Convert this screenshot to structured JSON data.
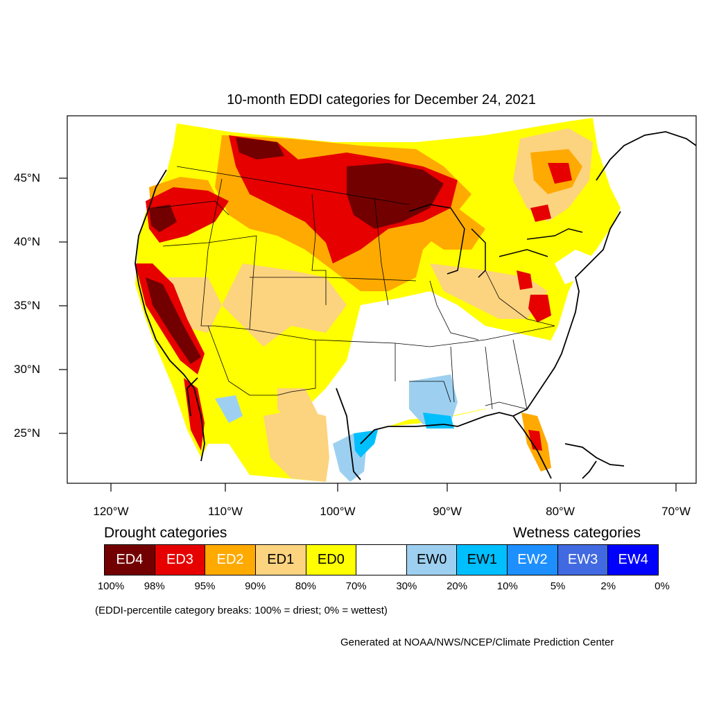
{
  "title": "10-month EDDI categories for December 24, 2021",
  "lat_labels": [
    "45°N",
    "40°N",
    "35°N",
    "30°N",
    "25°N"
  ],
  "lon_labels": [
    "120°W",
    "110°W",
    "100°W",
    "90°W",
    "80°W",
    "70°W"
  ],
  "legend": {
    "drought_heading": "Drought categories",
    "wetness_heading": "Wetness categories",
    "categories": [
      {
        "label": "ED4",
        "color": "#730000",
        "text_color": "#ffffff"
      },
      {
        "label": "ED3",
        "color": "#e60000",
        "text_color": "#ffffff"
      },
      {
        "label": "ED2",
        "color": "#ffaa00",
        "text_color": "#ffffff"
      },
      {
        "label": "ED1",
        "color": "#fcd37f",
        "text_color": "#000000"
      },
      {
        "label": "ED0",
        "color": "#ffff00",
        "text_color": "#000000"
      },
      {
        "label": "",
        "color": "#ffffff",
        "text_color": "#000000"
      },
      {
        "label": "EW0",
        "color": "#9dd0f0",
        "text_color": "#000000"
      },
      {
        "label": "EW1",
        "color": "#00bfff",
        "text_color": "#000000"
      },
      {
        "label": "EW2",
        "color": "#1e8fff",
        "text_color": "#ffffff"
      },
      {
        "label": "EW3",
        "color": "#4169e1",
        "text_color": "#ffffff"
      },
      {
        "label": "EW4",
        "color": "#0000ff",
        "text_color": "#ffffff"
      }
    ],
    "percentiles": [
      "100%",
      "98%",
      "95%",
      "90%",
      "80%",
      "70%",
      "30%",
      "20%",
      "10%",
      "5%",
      "2%",
      "0%"
    ]
  },
  "note": "(EDDI-percentile category breaks: 100% = driest; 0% = wettest)",
  "credit": "Generated at NOAA/NWS/NCEP/Climate Prediction Center"
}
